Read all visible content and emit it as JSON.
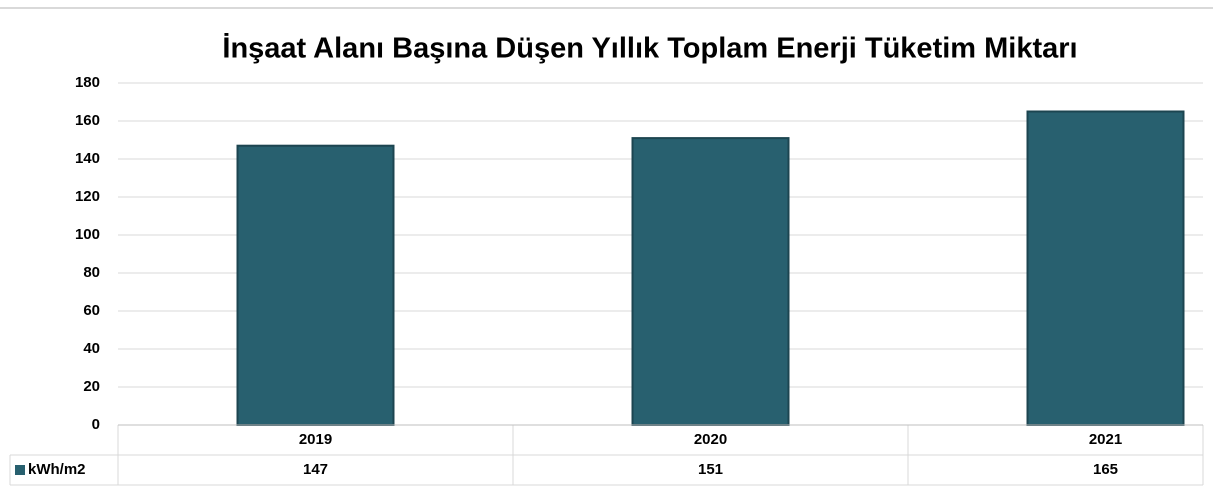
{
  "chart_data": {
    "type": "bar",
    "title": "İnşaat Alanı Başına Düşen Yıllık Toplam Enerji Tüketim Miktarı",
    "categories": [
      "2019",
      "2020",
      "2021"
    ],
    "series": [
      {
        "name": "kWh/m2",
        "color": "#28606f",
        "values": [
          147,
          151,
          165
        ]
      }
    ],
    "ylim": [
      0,
      180
    ],
    "yticks": [
      0,
      20,
      40,
      60,
      80,
      100,
      120,
      140,
      160,
      180
    ],
    "grid": true,
    "data_table": true
  }
}
